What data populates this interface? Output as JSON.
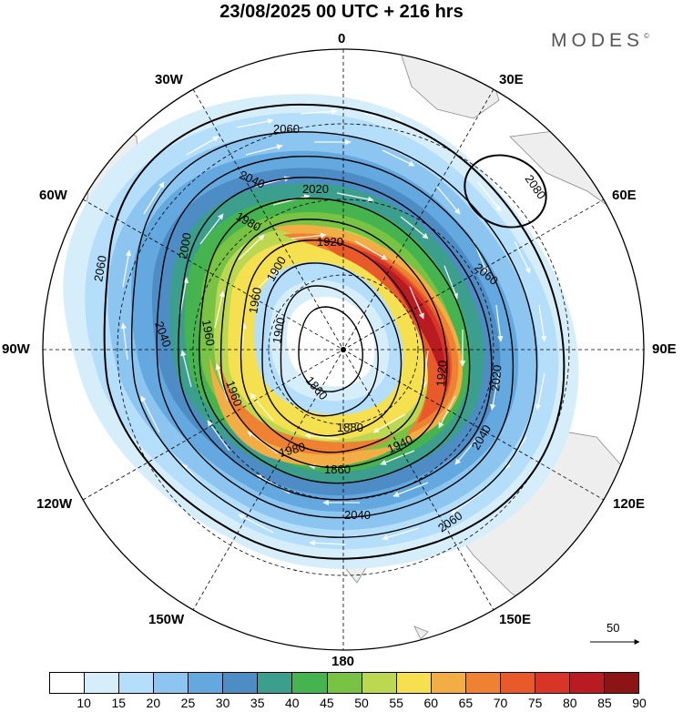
{
  "title": "23/08/2025  00 UTC  + 216 hrs",
  "brand": "MODES",
  "brand_mark": "©",
  "longitudes": [
    "0",
    "30E",
    "60E",
    "90E",
    "120E",
    "150E",
    "180",
    "150W",
    "120W",
    "90W",
    "60W",
    "30W"
  ],
  "contours": [
    "2080",
    "2060",
    "2060",
    "2060",
    "2060",
    "2040",
    "2040",
    "2040",
    "2040",
    "2020",
    "2020",
    "2000",
    "1980",
    "1980",
    "1960",
    "1960",
    "1960",
    "1940",
    "1920",
    "1920",
    "1900",
    "1900",
    "1880",
    "1860",
    "1860"
  ],
  "vector_scale": "50",
  "colorbar": {
    "ticks": [
      "10",
      "15",
      "20",
      "25",
      "30",
      "35",
      "40",
      "45",
      "50",
      "55",
      "60",
      "65",
      "70",
      "75",
      "80",
      "85",
      "90"
    ],
    "colors": [
      "#ffffff",
      "#d6eefa",
      "#b4defa",
      "#8cc6f0",
      "#64a8e0",
      "#4d8cc4",
      "#3c9e8c",
      "#46b44e",
      "#78c244",
      "#bcd850",
      "#f5e050",
      "#f2ae44",
      "#ee8232",
      "#e85a2a",
      "#d83428",
      "#b81c22",
      "#8c1414"
    ]
  }
}
